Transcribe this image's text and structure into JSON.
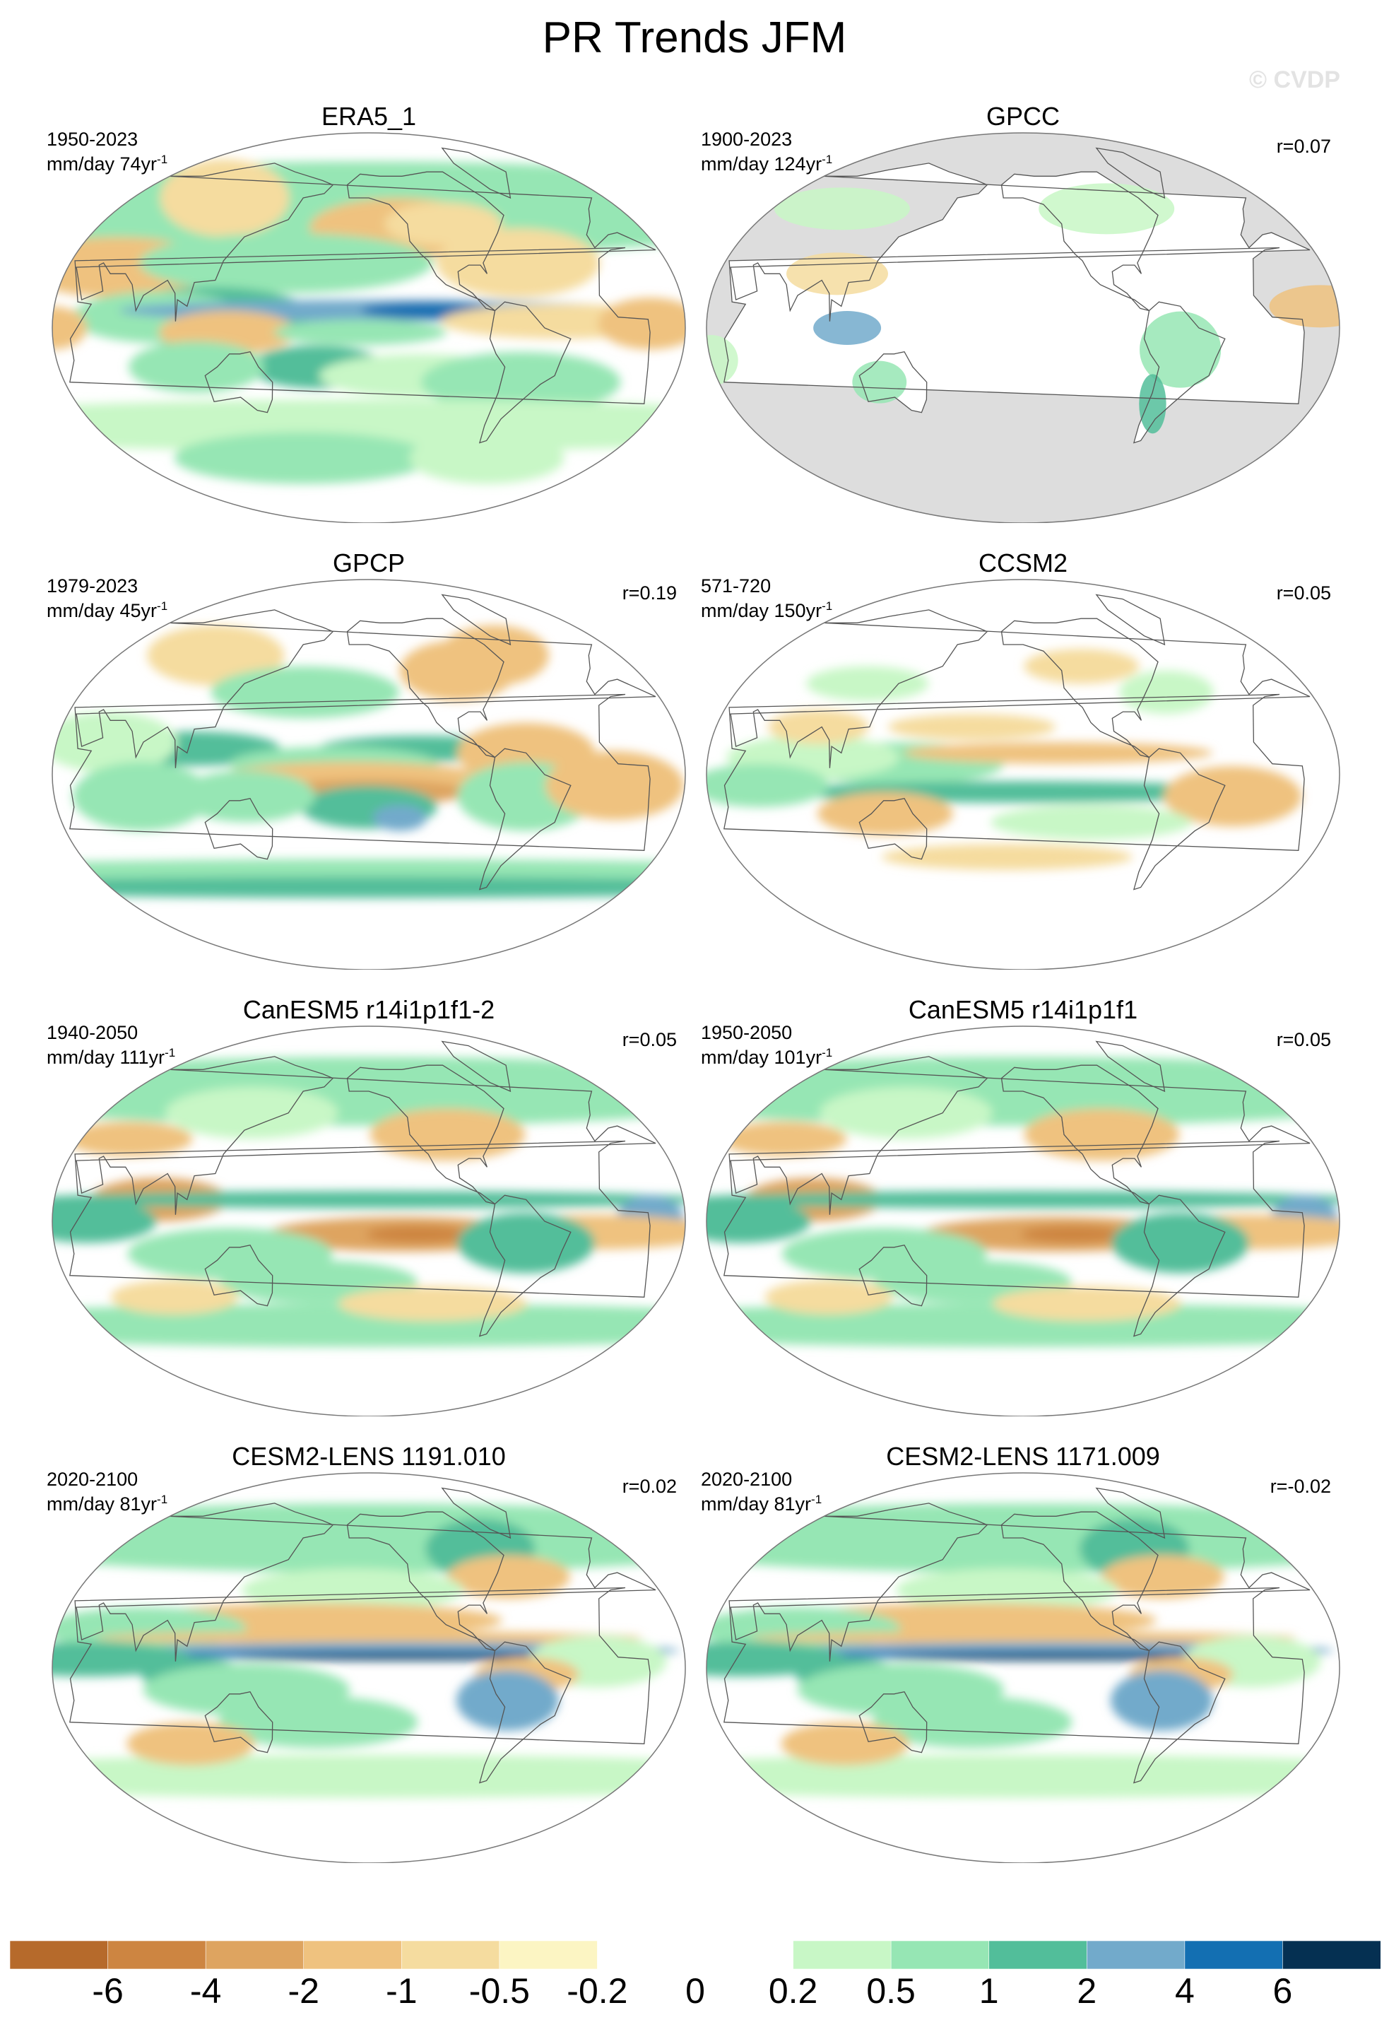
{
  "title": "PR Trends JFM",
  "watermark": "© CVDP",
  "colorbar": {
    "colors": [
      "#b66a2b",
      "#cd8541",
      "#dea460",
      "#efc27f",
      "#f5dc9f",
      "#fcf5c3",
      "#ffffff",
      "#ffffff",
      "#c8f7c6",
      "#96e6b4",
      "#52be9a",
      "#72aacb",
      "#136fb2",
      "#053052"
    ],
    "labels": [
      "-6",
      "-4",
      "-2",
      "-1",
      "-0.5",
      "-0.2",
      "0",
      "0.2",
      "0.5",
      "1",
      "2",
      "4",
      "6"
    ]
  },
  "panels": [
    {
      "title": "ERA5_1",
      "period": "1950-2023",
      "units": "mm/day 74yr",
      "r": "",
      "style": "era5"
    },
    {
      "title": "GPCC",
      "period": "1900-2023",
      "units": "mm/day 124yr",
      "r": "r=0.07",
      "style": "gpcc"
    },
    {
      "title": "GPCP",
      "period": "1979-2023",
      "units": "mm/day 45yr",
      "r": "r=0.19",
      "style": "gpcp"
    },
    {
      "title": "CCSM2",
      "period": "571-720",
      "units": "mm/day 150yr",
      "r": "r=0.05",
      "style": "ccsm"
    },
    {
      "title": "CanESM5 r14i1p1f1-2",
      "period": "1940-2050",
      "units": "mm/day 111yr",
      "r": "r=0.05",
      "style": "canesm"
    },
    {
      "title": "CanESM5 r14i1p1f1",
      "period": "1950-2050",
      "units": "mm/day 101yr",
      "r": "r=0.05",
      "style": "canesm"
    },
    {
      "title": "CESM2-LENS 1191.010",
      "period": "2020-2100",
      "units": "mm/day 81yr",
      "r": "r=0.02",
      "style": "cesm"
    },
    {
      "title": "CESM2-LENS 1171.009",
      "period": "2020-2100",
      "units": "mm/day 81yr",
      "r": "r=-0.02",
      "style": "cesm"
    }
  ]
}
